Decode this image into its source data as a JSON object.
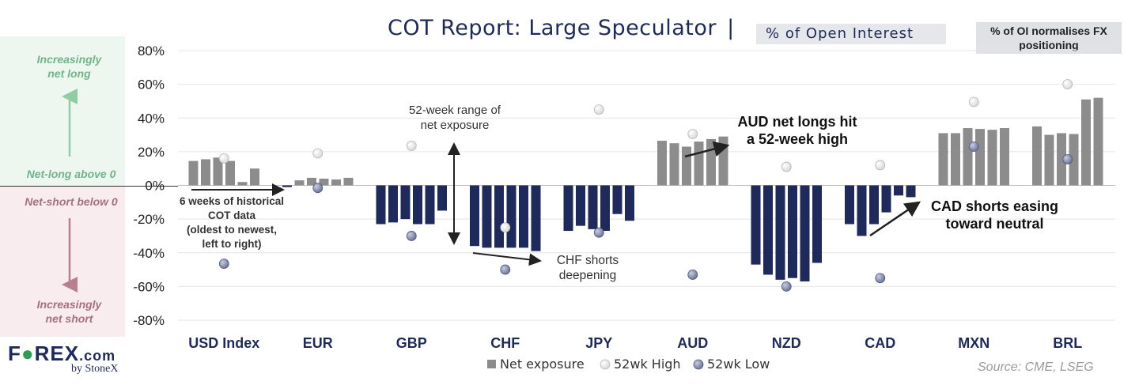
{
  "header": {
    "title": "COT Report: Large Speculator",
    "title_sep": "|",
    "subtitle": "% of Open Interest",
    "note": "% of OI normalises FX positioning"
  },
  "side_panel": {
    "top_label_1": "Increasingly",
    "top_label_2": "net long",
    "above_label": "Net-long above 0",
    "below_label": "Net-short below 0",
    "bottom_label_1": "Increasingly",
    "bottom_label_2": "net short",
    "arrow_up_color": "#8fcca3",
    "arrow_down_color": "#b8808f"
  },
  "annotations": {
    "six_weeks": [
      "6 weeks of historical",
      "COT data",
      "(oldest to newest,",
      "left to right)"
    ],
    "range": [
      "52-week range of",
      "net exposure"
    ],
    "chf": [
      "CHF shorts",
      "deepening"
    ],
    "aud": [
      "AUD net longs hit",
      "a 52-week high"
    ],
    "cad": [
      "CAD shorts easing",
      "toward neutral"
    ]
  },
  "legend": {
    "net": "Net exposure",
    "high": "52wk High",
    "low": "52wk Low"
  },
  "source": "Source: CME, LSEG",
  "logo": {
    "main_1": "F",
    "main_2": "REX",
    "main_3": ".com",
    "sub": "by StoneX"
  },
  "colors": {
    "positive_bar": "#8c8c8c",
    "negative_bar": "#1f2a5c",
    "high_marker": "#d9d9d9",
    "low_marker": "#6e7699",
    "title": "#1f2a5c"
  },
  "chart_data": {
    "type": "bar",
    "title": "COT Report: Large Speculator",
    "subtitle": "% of Open Interest",
    "ylim": [
      -80,
      80
    ],
    "yticks": [
      "80%",
      "60%",
      "40%",
      "20%",
      "0%",
      "-20%",
      "-40%",
      "-60%",
      "-80%"
    ],
    "ytick_values": [
      80,
      60,
      40,
      20,
      0,
      -20,
      -40,
      -60,
      -80
    ],
    "grid": true,
    "legend_position": "bottom",
    "categories": [
      "USD Index",
      "EUR",
      "GBP",
      "CHF",
      "JPY",
      "AUD",
      "NZD",
      "CAD",
      "MXN",
      "BRL"
    ],
    "series": [
      {
        "name": "Net exposure",
        "values": [
          [
            14.5,
            15.5,
            16.5,
            14.5,
            2,
            10
          ],
          [
            -1,
            3,
            4.5,
            4,
            3.5,
            4.5
          ],
          [
            -23,
            -22,
            -20,
            -23,
            -23,
            -15
          ],
          [
            -36,
            -37,
            -37,
            -37,
            -37,
            -39
          ],
          [
            -27,
            -24,
            -26,
            -27,
            -17,
            -21
          ],
          [
            26.5,
            25,
            23,
            26,
            27.5,
            29
          ],
          [
            -47,
            -53,
            -56,
            -55,
            -57,
            -46
          ],
          [
            -23,
            -30,
            -23,
            -16,
            -6,
            -7
          ],
          [
            31,
            31,
            34,
            33.5,
            33,
            34
          ],
          [
            35,
            30,
            31,
            30.5,
            51,
            52
          ]
        ]
      },
      {
        "name": "52wk High",
        "values": [
          16,
          19,
          23.5,
          -25,
          45,
          30.5,
          11,
          12,
          49.5,
          60
        ]
      },
      {
        "name": "52wk Low",
        "values": [
          -46.5,
          -1.5,
          -30,
          -50,
          -28,
          -53,
          -60,
          -55,
          23,
          15.5
        ]
      }
    ]
  }
}
